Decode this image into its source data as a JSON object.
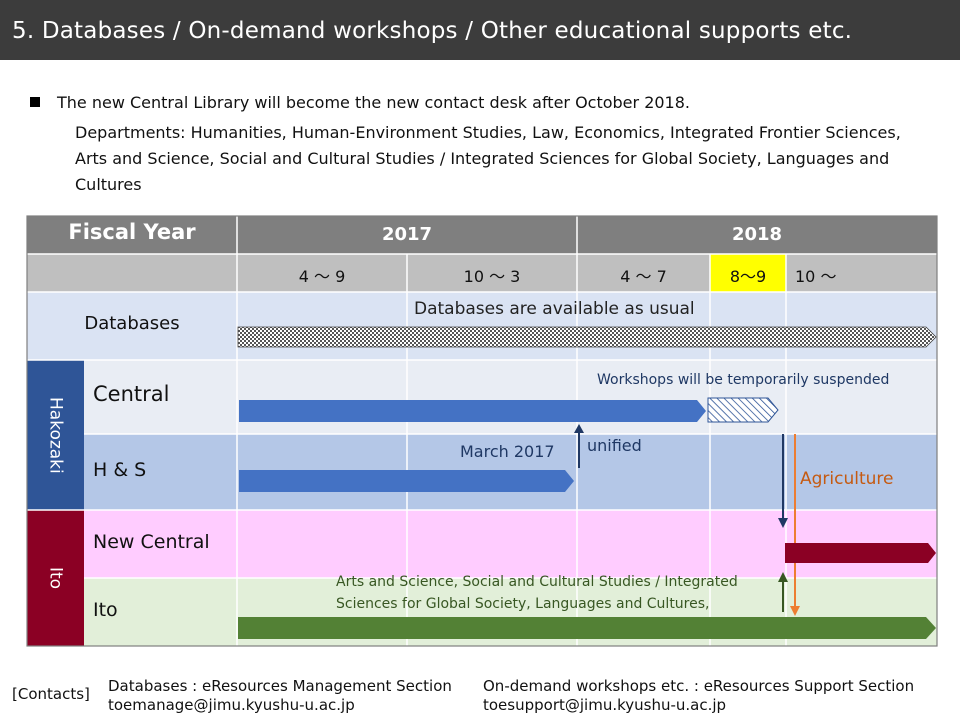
{
  "header": {
    "title": "5. Databases / On-demand workshops / Other educational supports etc."
  },
  "intro": {
    "main": "The new Central Library will become the new contact desk after October 2018.",
    "departments": "Departments: Humanities, Human-Environment Studies, Law, Economics, Integrated Frontier Sciences, Arts and Science, Social and Cultural Studies / Integrated Sciences for Global Society, Languages and Cultures"
  },
  "table": {
    "fiscal_year_label": "Fiscal Year",
    "years": [
      "2017",
      "2018"
    ],
    "periods": [
      "4 ～ 9",
      "10 ～ 3",
      "4 ～ 7",
      "8～9",
      "10 ～"
    ],
    "groups": {
      "hakozaki": "Hakozaki",
      "ito": "Ito"
    },
    "rows": {
      "databases": "Databases",
      "central": "Central",
      "hs": "H & S",
      "new_central": "New Central",
      "ito": "Ito"
    }
  },
  "annotations": {
    "databases_usual": "Databases are available as usual",
    "workshops_suspended": "Workshops will be temporarily suspended",
    "march_2017": "March 2017",
    "unified": "unified",
    "agriculture": "Agriculture",
    "ito_departments": "Arts and Science, Social and Cultural Studies / Integrated Sciences for Global Society, Languages and Cultures,"
  },
  "footer": {
    "contacts_label": "[Contacts]",
    "databases_section": "Databases : eResources Management Section",
    "databases_email": "toemanage@jimu.kyushu-u.ac.jp",
    "workshops_section": "On-demand workshops etc. :  eResources Support Section",
    "workshops_email": "toesupport@jimu.kyushu-u.ac.jp"
  },
  "colors": {
    "header_bg": "#3c3c3c",
    "table_header": "#7f7f7f",
    "period_row": "#bfbfbf",
    "highlight": "#ffff00",
    "hakozaki": "#2f5597",
    "ito": "#8b0024",
    "blue_bar": "#4472c4",
    "red_bar": "#8b0024",
    "green_bar": "#538135",
    "agriculture": "#c55a11",
    "navy": "#1f3864",
    "annotation_blue": "#1f3864"
  }
}
